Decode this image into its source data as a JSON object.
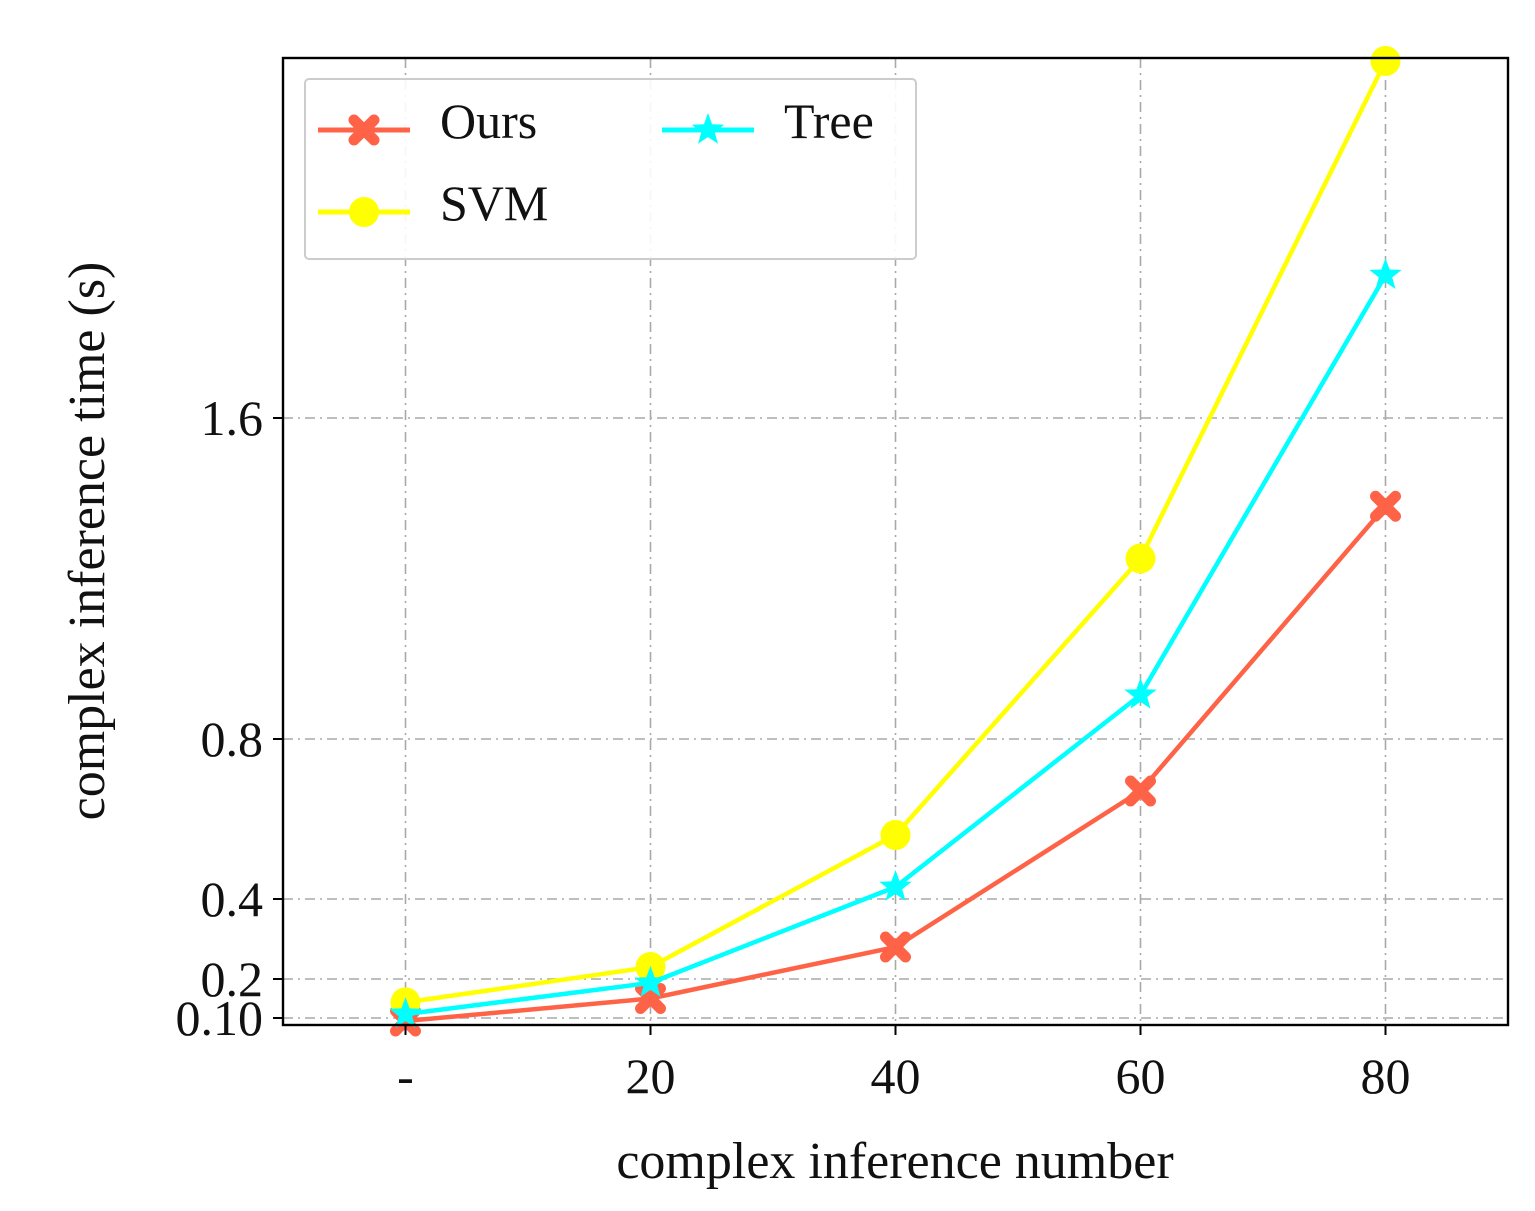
{
  "chart_data": {
    "type": "line",
    "xlabel": "complex inference number",
    "ylabel": "complex inference time (s)",
    "categories": [
      "-",
      "20",
      "40",
      "60",
      "80"
    ],
    "x": [
      0,
      20,
      40,
      60,
      80
    ],
    "xlim": [
      -10,
      90
    ],
    "ylim": [
      0.08,
      2.5
    ],
    "yticks": [
      0.1,
      0.2,
      0.4,
      0.8,
      1.6
    ],
    "ytick_labels": [
      "0.10",
      "0.2",
      "0.4",
      "0.8",
      "1.6"
    ],
    "grid": true,
    "legend_position": "top-left",
    "series": [
      {
        "name": "Ours",
        "color": "#ff6347",
        "marker": "cross",
        "values": [
          0.085,
          0.15,
          0.28,
          0.67,
          1.38
        ]
      },
      {
        "name": "SVM",
        "color": "#ffff00",
        "marker": "circle",
        "values": [
          0.14,
          0.23,
          0.56,
          1.25,
          2.5
        ]
      },
      {
        "name": "Tree",
        "color": "#00ffff",
        "marker": "star",
        "values": [
          0.11,
          0.19,
          0.43,
          0.91,
          1.96
        ]
      }
    ]
  }
}
